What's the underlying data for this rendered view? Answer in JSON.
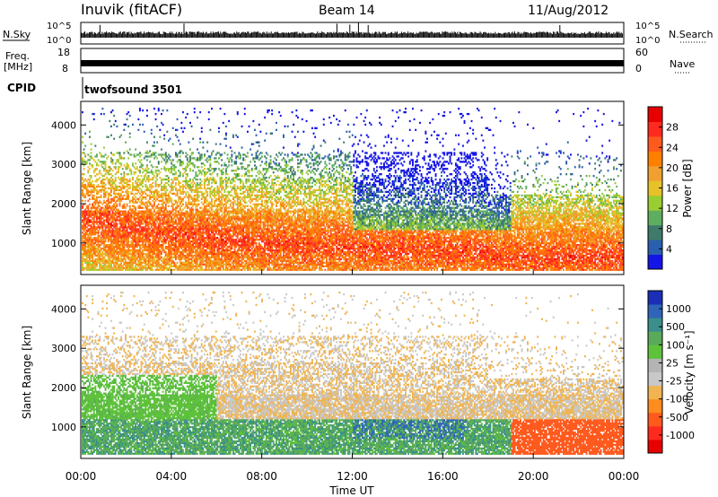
{
  "header": {
    "station": "Inuvik (fitACF)",
    "beam": "Beam 14",
    "date": "11/Aug/2012"
  },
  "aux_panels": {
    "nsky_label": "N.Sky",
    "nsky_ticks": [
      "10^5",
      "10^0"
    ],
    "nsearch_label": "N.Search",
    "freq_label_line1": "Freq.",
    "freq_label_line2": "[MHz]",
    "freq_ticks": [
      "18",
      "8"
    ],
    "nave_label": "Nave",
    "nave_ticks": [
      "60",
      "0"
    ],
    "cpid_label": "CPID",
    "cpid_value": "twofsound 3501"
  },
  "chart_data": [
    {
      "type": "heatmap",
      "name": "power",
      "ylabel": "Slant Range [km]",
      "xlabel": "",
      "yticks": [
        "1000",
        "2000",
        "3000",
        "4000"
      ],
      "ylim": [
        200,
        4600
      ],
      "xlim_hours": [
        0,
        24
      ],
      "colorbar": {
        "label": "Power [dB]",
        "ticks": [
          "4",
          "8",
          "12",
          "16",
          "20",
          "24",
          "28"
        ],
        "range": [
          0,
          32
        ],
        "colors": [
          "#1414e6",
          "#2a5fb0",
          "#3f7a6a",
          "#5fae5f",
          "#9acd32",
          "#e6c228",
          "#f0a030",
          "#ff7f00",
          "#ff5a1e",
          "#ff2a1e",
          "#e60000"
        ]
      }
    },
    {
      "type": "heatmap",
      "name": "velocity",
      "ylabel": "Slant Range [km]",
      "xlabel": "Time UT",
      "xticks": [
        "00:00",
        "04:00",
        "08:00",
        "12:00",
        "16:00",
        "20:00",
        "00:00"
      ],
      "yticks": [
        "1000",
        "2000",
        "3000",
        "4000"
      ],
      "ylim": [
        200,
        4600
      ],
      "xlim_hours": [
        0,
        24
      ],
      "colorbar": {
        "label": "Velocity [m s⁻¹]",
        "ticks": [
          "1000",
          "500",
          "100",
          "25",
          "-25",
          "-100",
          "-500",
          "-1000"
        ],
        "colors": [
          "#1a2fb5",
          "#2f64b8",
          "#3a8f8a",
          "#5aaa5a",
          "#5ec23a",
          "#b4b4b4",
          "#c8c8c8",
          "#f0b450",
          "#ff8c1e",
          "#ff5a1e",
          "#ff2a1e",
          "#e60000"
        ]
      }
    }
  ]
}
